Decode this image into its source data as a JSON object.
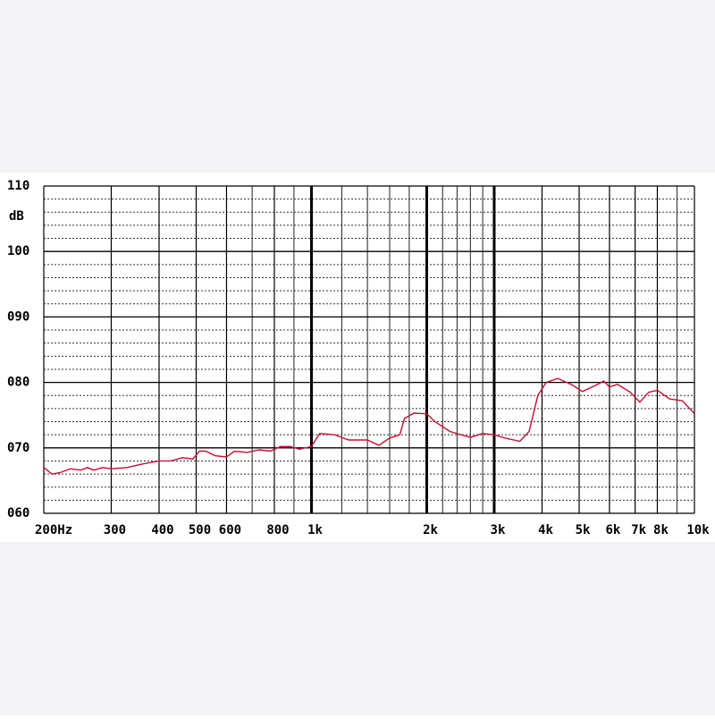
{
  "chart_data": {
    "type": "line",
    "y_label": "dB",
    "color": "#c8102e",
    "xlog": true,
    "x": [
      200,
      210,
      220,
      235,
      250,
      260,
      270,
      285,
      300,
      330,
      360,
      400,
      430,
      460,
      490,
      510,
      530,
      560,
      600,
      630,
      680,
      730,
      780,
      830,
      880,
      930,
      1000,
      1050,
      1150,
      1250,
      1400,
      1500,
      1600,
      1700,
      1750,
      1850,
      2000,
      2100,
      2300,
      2600,
      2800,
      3000,
      3200,
      3500,
      3700,
      3900,
      4100,
      4400,
      4800,
      5100,
      5500,
      5800,
      6000,
      6300,
      6800,
      7200,
      7600,
      8000,
      8600,
      9300,
      10000
    ],
    "values": [
      67.0,
      66.0,
      66.2,
      66.8,
      66.6,
      67.0,
      66.6,
      67.0,
      66.8,
      67.0,
      67.5,
      68.0,
      68.0,
      68.5,
      68.3,
      69.5,
      69.5,
      68.8,
      68.6,
      69.5,
      69.3,
      69.7,
      69.5,
      70.2,
      70.2,
      69.8,
      70.2,
      72.2,
      72.0,
      71.2,
      71.2,
      70.4,
      71.5,
      72.0,
      74.5,
      75.3,
      75.2,
      74.0,
      72.5,
      71.6,
      72.2,
      72.0,
      71.5,
      71.0,
      72.5,
      78.0,
      80.0,
      80.6,
      79.6,
      78.6,
      79.5,
      80.2,
      79.3,
      79.7,
      78.5,
      77.0,
      78.5,
      78.8,
      77.5,
      77.2,
      75.2
    ],
    "xlim": [
      200,
      10000
    ],
    "ylim": [
      60,
      110
    ],
    "xticks": [
      {
        "value": 200,
        "label": "200Hz"
      },
      300,
      400,
      500,
      600,
      800,
      {
        "value": 1000,
        "label": "1k"
      },
      {
        "value": 2000,
        "label": "2k"
      },
      {
        "value": 3000,
        "label": "3k"
      },
      {
        "value": 4000,
        "label": "4k"
      },
      {
        "value": 5000,
        "label": "5k"
      },
      {
        "value": 6000,
        "label": "6k"
      },
      {
        "value": 7000,
        "label": "7k"
      },
      {
        "value": 8000,
        "label": "8k"
      },
      {
        "value": 10000,
        "label": "10k"
      }
    ],
    "xminor": [
      700,
      900,
      1200,
      1400,
      1600,
      1800,
      2200,
      2400,
      2600,
      2800,
      9000
    ],
    "xbold": [
      1000,
      2000,
      3000
    ],
    "yticks": [
      110,
      100,
      {
        "value": 90,
        "label": "090"
      },
      {
        "value": 80,
        "label": "080"
      },
      {
        "value": 70,
        "label": "070"
      },
      {
        "value": 60,
        "label": "060"
      }
    ],
    "yminor": [
      62,
      64,
      66,
      68,
      72,
      74,
      76,
      78,
      82,
      84,
      86,
      88,
      92,
      94,
      96,
      98,
      102,
      104,
      106,
      108
    ],
    "grid": true
  }
}
